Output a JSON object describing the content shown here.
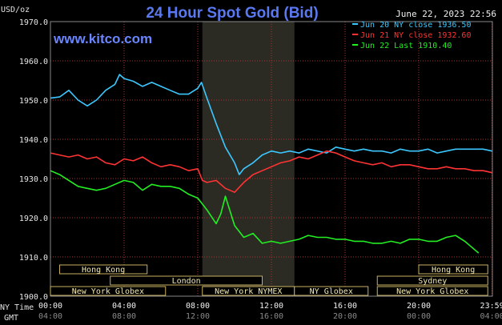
{
  "header": {
    "title": "24 Hour Spot Gold (Bid)",
    "unit": "USD/oz",
    "timestamp": "June 22, 2023 22:56",
    "site": "www.kitco.com"
  },
  "sessions": [
    {
      "label": "Hong Kong",
      "start": 0.5,
      "end": 5.25
    },
    {
      "label": "Hong Kong",
      "start": 20.0,
      "end": 23.75
    },
    {
      "label": "London",
      "start": 3.25,
      "end": 11.5
    },
    {
      "label": "Sydney",
      "start": 17.75,
      "end": 23.75
    },
    {
      "label": "New York Globex",
      "start": 0.0,
      "end": 6.25
    },
    {
      "label": "New York NYMEX",
      "start": 8.25,
      "end": 13.25
    },
    {
      "label": "NY Globex",
      "start": 13.25,
      "end": 17.25
    },
    {
      "label": "New York Globex",
      "start": 17.75,
      "end": 23.75
    }
  ],
  "time_labels": {
    "ny_time_label": "NY Time",
    "gmt_label": "GMT",
    "gmt_ticks": [
      "04:00",
      "08:00",
      "12:00",
      "16:00",
      "20:00",
      "00:00",
      "04:00"
    ]
  },
  "colors": {
    "background": "#000000",
    "grid": "#aa3333",
    "title": "#5a78f0",
    "site": "#6a86ff",
    "series_cyan": "#3cc8ff",
    "series_red": "#ff3333",
    "series_green": "#22ee22",
    "session_box": "#c8b060",
    "shade": "#2b2b24"
  },
  "chart_data": {
    "type": "line",
    "title": "24 Hour Spot Gold (Bid)",
    "ylabel": "USD/oz",
    "xlabel": "NY Time",
    "ylim": [
      1900,
      1970
    ],
    "xlim": [
      0,
      24
    ],
    "yticks": [
      1900,
      1910,
      1920,
      1930,
      1940,
      1950,
      1960,
      1970
    ],
    "ytick_labels": [
      "1900.0",
      "1910.0",
      "1920.0",
      "1930.0",
      "1940.0",
      "1950.0",
      "1960.0",
      "1970.0"
    ],
    "xticks": [
      0,
      4,
      8,
      12,
      16,
      20,
      23.983
    ],
    "xtick_labels": [
      "00:00",
      "04:00",
      "08:00",
      "12:00",
      "16:00",
      "20:00",
      "23:59"
    ],
    "shaded_region": [
      8.25,
      13.25
    ],
    "grid": true,
    "legend_position": "top-right",
    "series": [
      {
        "name": "Jun 20 NY close 1936.50",
        "color": "#3cc8ff",
        "x": [
          0,
          0.5,
          1.0,
          1.5,
          2.0,
          2.5,
          3.0,
          3.5,
          3.75,
          4.0,
          4.5,
          5.0,
          5.5,
          6.0,
          6.5,
          7.0,
          7.5,
          8.0,
          8.2,
          8.5,
          9.0,
          9.5,
          10.0,
          10.25,
          10.5,
          11.0,
          11.5,
          12.0,
          12.5,
          13.0,
          13.5,
          14.0,
          14.5,
          15.0,
          15.5,
          16.0,
          16.5,
          17.0,
          17.5,
          18.0,
          18.5,
          19.0,
          19.5,
          20.0,
          20.5,
          21.0,
          21.5,
          22.0,
          22.5,
          23.0,
          23.5,
          23.98
        ],
        "values": [
          1950.5,
          1950.8,
          1952.5,
          1950.0,
          1948.5,
          1950.0,
          1952.5,
          1954.0,
          1956.5,
          1955.5,
          1954.8,
          1953.5,
          1954.5,
          1953.5,
          1952.5,
          1951.5,
          1951.5,
          1953.0,
          1954.5,
          1950.5,
          1944.0,
          1938.0,
          1934.0,
          1931.0,
          1932.5,
          1934.0,
          1936.0,
          1937.0,
          1936.5,
          1937.0,
          1936.5,
          1937.5,
          1937.0,
          1936.5,
          1938.0,
          1937.5,
          1937.0,
          1937.5,
          1937.0,
          1937.0,
          1936.5,
          1937.5,
          1937.0,
          1937.0,
          1937.5,
          1936.5,
          1937.0,
          1937.5,
          1937.5,
          1937.5,
          1937.5,
          1937.0
        ]
      },
      {
        "name": "Jun 21 NY close 1932.60",
        "color": "#ff3333",
        "x": [
          0,
          0.5,
          1.0,
          1.5,
          2.0,
          2.5,
          3.0,
          3.5,
          4.0,
          4.5,
          5.0,
          5.5,
          6.0,
          6.5,
          7.0,
          7.5,
          8.0,
          8.25,
          8.5,
          9.0,
          9.5,
          10.0,
          10.5,
          11.0,
          11.5,
          12.0,
          12.5,
          13.0,
          13.5,
          14.0,
          14.5,
          15.0,
          15.5,
          16.0,
          16.5,
          17.0,
          17.5,
          18.0,
          18.5,
          19.0,
          19.5,
          20.0,
          20.5,
          21.0,
          21.5,
          22.0,
          22.5,
          23.0,
          23.5,
          23.98
        ],
        "values": [
          1936.5,
          1936.0,
          1935.5,
          1936.0,
          1935.0,
          1935.5,
          1934.0,
          1933.5,
          1935.0,
          1934.5,
          1935.5,
          1934.0,
          1933.0,
          1933.5,
          1933.0,
          1932.0,
          1932.5,
          1929.5,
          1929.0,
          1929.5,
          1927.5,
          1926.5,
          1929.0,
          1931.0,
          1932.0,
          1933.0,
          1934.0,
          1934.5,
          1935.5,
          1935.0,
          1936.0,
          1937.0,
          1936.5,
          1935.5,
          1934.5,
          1934.0,
          1933.5,
          1934.0,
          1933.0,
          1933.5,
          1933.5,
          1933.0,
          1932.5,
          1932.5,
          1933.0,
          1932.5,
          1932.5,
          1932.0,
          1932.0,
          1931.5
        ]
      },
      {
        "name": "Jun 22 Last 1910.40",
        "color": "#22ee22",
        "x": [
          0,
          0.5,
          1.0,
          1.5,
          2.0,
          2.5,
          3.0,
          3.5,
          4.0,
          4.5,
          5.0,
          5.5,
          6.0,
          6.5,
          7.0,
          7.5,
          8.0,
          8.5,
          9.0,
          9.25,
          9.5,
          10.0,
          10.5,
          11.0,
          11.5,
          12.0,
          12.5,
          13.0,
          13.5,
          14.0,
          14.5,
          15.0,
          15.5,
          16.0,
          16.5,
          17.0,
          17.5,
          18.0,
          18.5,
          19.0,
          19.5,
          20.0,
          20.5,
          21.0,
          21.5,
          22.0,
          22.5,
          22.75,
          23.0,
          23.25
        ],
        "values": [
          1932.0,
          1931.0,
          1929.5,
          1928.0,
          1927.5,
          1927.0,
          1927.5,
          1928.5,
          1929.5,
          1929.0,
          1927.0,
          1928.5,
          1928.0,
          1928.0,
          1927.5,
          1926.0,
          1925.0,
          1922.0,
          1918.5,
          1921.0,
          1925.5,
          1918.0,
          1915.0,
          1916.0,
          1913.5,
          1914.0,
          1913.5,
          1914.0,
          1914.5,
          1915.5,
          1915.0,
          1915.0,
          1914.5,
          1914.5,
          1914.0,
          1914.0,
          1913.5,
          1913.5,
          1914.0,
          1913.5,
          1914.5,
          1914.5,
          1914.0,
          1914.0,
          1915.0,
          1915.5,
          1914.0,
          1913.0,
          1912.0,
          1911.0
        ]
      }
    ]
  }
}
